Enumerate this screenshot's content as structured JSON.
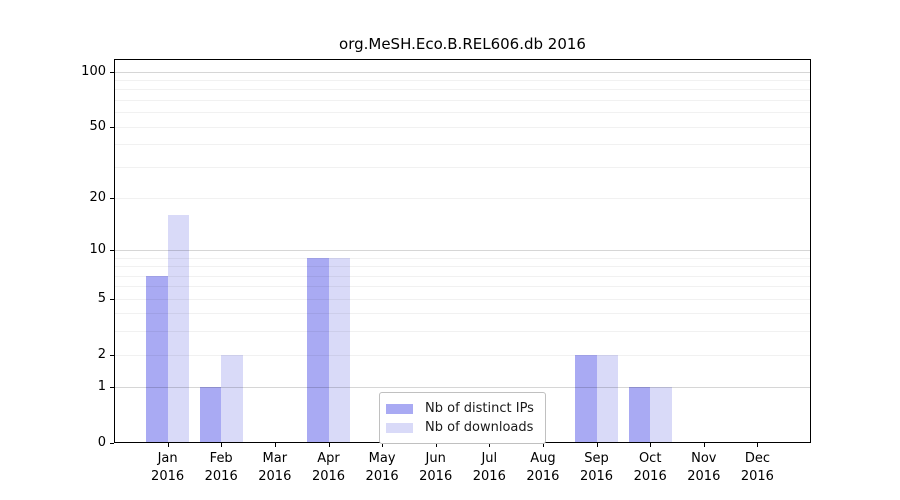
{
  "chart_data": {
    "type": "bar",
    "title": "org.MeSH.Eco.B.REL606.db 2016",
    "categories": [
      "Jan 2016",
      "Feb 2016",
      "Mar 2016",
      "Apr 2016",
      "May 2016",
      "Jun 2016",
      "Jul 2016",
      "Aug 2016",
      "Sep 2016",
      "Oct 2016",
      "Nov 2016",
      "Dec 2016"
    ],
    "series": [
      {
        "name": "Nb of distinct IPs",
        "color": "#a9aaf3",
        "values": [
          7,
          1,
          0,
          9,
          0,
          0,
          0,
          0,
          2,
          1,
          0,
          0
        ]
      },
      {
        "name": "Nb of downloads",
        "color": "#d9daf8",
        "values": [
          16,
          2,
          0,
          9,
          0,
          0,
          0,
          0,
          2,
          1,
          0,
          0
        ]
      }
    ],
    "xlabel": "",
    "ylabel": "",
    "yscale": "log1p",
    "y_ticks": [
      0,
      1,
      2,
      5,
      10,
      20,
      50,
      100
    ],
    "ylim": [
      0,
      117
    ],
    "grid": "horizontal",
    "legend_position": "inside-bottom-center",
    "colors": {
      "ips_bar": "#a9aaf3",
      "downloads_bar": "#d9daf8",
      "major_grid": "#d6d6d6",
      "minor_grid": "#f1f1f1"
    }
  }
}
